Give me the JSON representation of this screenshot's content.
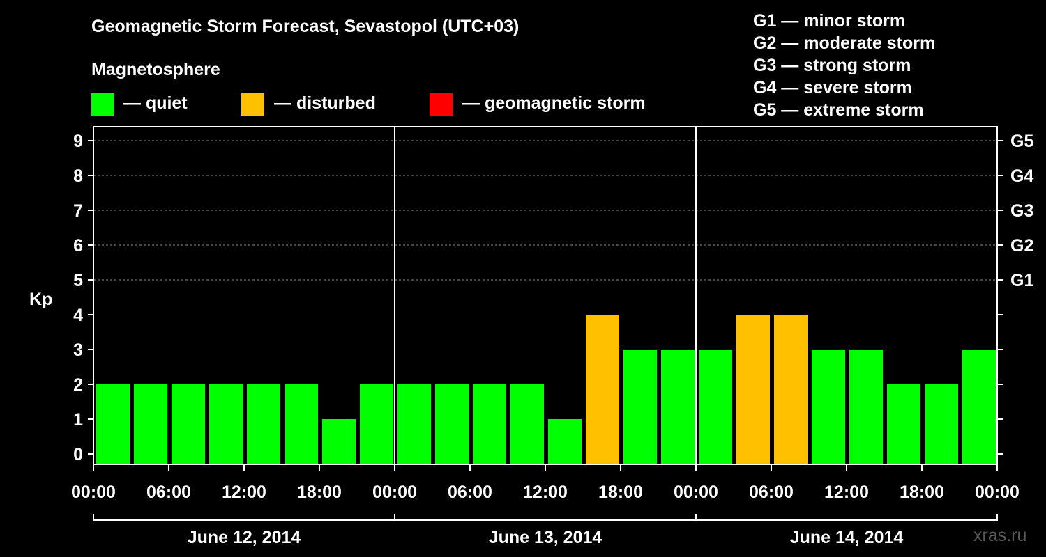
{
  "header": {
    "title": "Geomagnetic Storm Forecast, Sevastopol (UTC+03)",
    "magnetosphere_label": "Magnetosphere"
  },
  "legend": [
    {
      "label": "— quiet",
      "color": "#00ff00"
    },
    {
      "label": "— disturbed",
      "color": "#ffc000"
    },
    {
      "label": "— geomagnetic storm",
      "color": "#ff0000"
    }
  ],
  "g_scale": [
    "G1 — minor storm",
    "G2 — moderate storm",
    "G3 — strong storm",
    "G4 — severe storm",
    "G5 — extreme storm"
  ],
  "credit": "xras.ru",
  "chart_data": {
    "type": "bar",
    "ylabel": "Kp",
    "ylim": [
      0,
      9
    ],
    "yticks": [
      0,
      1,
      2,
      3,
      4,
      5,
      6,
      7,
      8,
      9
    ],
    "right_ticks": [
      {
        "value": 5,
        "label": "G1"
      },
      {
        "value": 6,
        "label": "G2"
      },
      {
        "value": 7,
        "label": "G3"
      },
      {
        "value": 8,
        "label": "G4"
      },
      {
        "value": 9,
        "label": "G5"
      }
    ],
    "xtick_labels": [
      "00:00",
      "06:00",
      "12:00",
      "18:00",
      "00:00",
      "06:00",
      "12:00",
      "18:00",
      "00:00",
      "06:00",
      "12:00",
      "18:00",
      "00:00"
    ],
    "days": [
      "June 12, 2014",
      "June 13, 2014",
      "June 14, 2014"
    ],
    "interval_hours": 3,
    "values": [
      2,
      2,
      2,
      2,
      2,
      2,
      1,
      2,
      2,
      2,
      2,
      2,
      1,
      4,
      3,
      3,
      3,
      4,
      4,
      3,
      3,
      2,
      2,
      3
    ],
    "colors": {
      "quiet": "#00ff00",
      "disturbed": "#ffc000",
      "storm": "#ff0000"
    },
    "grid": "dashed horizontal lines at Kp 5-9"
  }
}
